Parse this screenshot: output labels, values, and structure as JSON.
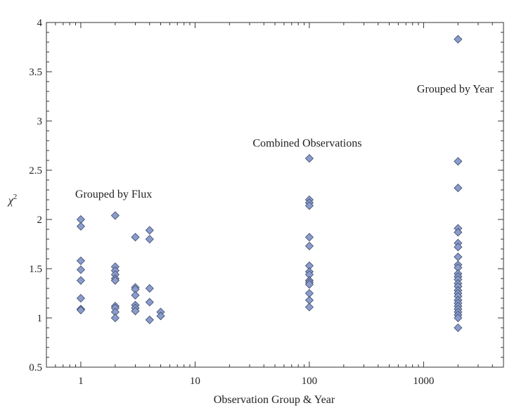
{
  "chart_data": {
    "type": "scatter",
    "xlabel": "Observation Group & Year",
    "ylabel_base": "χ",
    "ylabel_sup": "2",
    "x_scale": "log",
    "xlim": [
      0.5,
      5000
    ],
    "ylim": [
      0.5,
      4
    ],
    "x_ticks": [
      1,
      10,
      100,
      1000
    ],
    "x_tick_labels": [
      "1",
      "10",
      "100",
      "1000"
    ],
    "y_ticks": [
      0.5,
      1,
      1.5,
      2,
      2.5,
      3,
      3.5,
      4
    ],
    "y_tick_labels": [
      "0.5",
      "1",
      "1.5",
      "2",
      "2.5",
      "3",
      "3.5",
      "4"
    ],
    "grid": false,
    "marker": "diamond",
    "marker_color": "#8a9ccc",
    "marker_edge": "#3b4868",
    "annotations": [
      {
        "text": "Grouped by Flux",
        "x": 1,
        "y": 2.22
      },
      {
        "text": "Combined Observations",
        "x": 100,
        "y": 2.74
      },
      {
        "text": "Grouped by Year",
        "x": 2000,
        "y": 3.29
      }
    ],
    "points": [
      {
        "x": 1,
        "y": 2.0
      },
      {
        "x": 1,
        "y": 1.93
      },
      {
        "x": 1,
        "y": 1.58
      },
      {
        "x": 1,
        "y": 1.49
      },
      {
        "x": 1,
        "y": 1.38
      },
      {
        "x": 1,
        "y": 1.2
      },
      {
        "x": 1,
        "y": 1.09
      },
      {
        "x": 1,
        "y": 1.08
      },
      {
        "x": 2,
        "y": 2.04
      },
      {
        "x": 2,
        "y": 1.52
      },
      {
        "x": 2,
        "y": 1.48
      },
      {
        "x": 2,
        "y": 1.44
      },
      {
        "x": 2,
        "y": 1.4
      },
      {
        "x": 2,
        "y": 1.38
      },
      {
        "x": 2,
        "y": 1.12
      },
      {
        "x": 2,
        "y": 1.1
      },
      {
        "x": 2,
        "y": 1.06
      },
      {
        "x": 2,
        "y": 1.0
      },
      {
        "x": 3,
        "y": 1.82
      },
      {
        "x": 3,
        "y": 1.31
      },
      {
        "x": 3,
        "y": 1.29
      },
      {
        "x": 3,
        "y": 1.23
      },
      {
        "x": 3,
        "y": 1.13
      },
      {
        "x": 3,
        "y": 1.1
      },
      {
        "x": 3,
        "y": 1.07
      },
      {
        "x": 4,
        "y": 1.89
      },
      {
        "x": 4,
        "y": 1.8
      },
      {
        "x": 4,
        "y": 1.3
      },
      {
        "x": 4,
        "y": 1.16
      },
      {
        "x": 4,
        "y": 0.98
      },
      {
        "x": 5,
        "y": 1.06
      },
      {
        "x": 5,
        "y": 1.02
      },
      {
        "x": 100,
        "y": 2.62
      },
      {
        "x": 100,
        "y": 2.2
      },
      {
        "x": 100,
        "y": 2.17
      },
      {
        "x": 100,
        "y": 2.14
      },
      {
        "x": 100,
        "y": 1.82
      },
      {
        "x": 100,
        "y": 1.73
      },
      {
        "x": 100,
        "y": 1.53
      },
      {
        "x": 100,
        "y": 1.47
      },
      {
        "x": 100,
        "y": 1.44
      },
      {
        "x": 100,
        "y": 1.38
      },
      {
        "x": 100,
        "y": 1.36
      },
      {
        "x": 100,
        "y": 1.34
      },
      {
        "x": 100,
        "y": 1.25
      },
      {
        "x": 100,
        "y": 1.18
      },
      {
        "x": 100,
        "y": 1.11
      },
      {
        "x": 2000,
        "y": 3.83
      },
      {
        "x": 2000,
        "y": 2.59
      },
      {
        "x": 2000,
        "y": 2.32
      },
      {
        "x": 2000,
        "y": 1.91
      },
      {
        "x": 2000,
        "y": 1.87
      },
      {
        "x": 2000,
        "y": 1.76
      },
      {
        "x": 2000,
        "y": 1.72
      },
      {
        "x": 2000,
        "y": 1.62
      },
      {
        "x": 2000,
        "y": 1.54
      },
      {
        "x": 2000,
        "y": 1.51
      },
      {
        "x": 2000,
        "y": 1.45
      },
      {
        "x": 2000,
        "y": 1.42
      },
      {
        "x": 2000,
        "y": 1.39
      },
      {
        "x": 2000,
        "y": 1.35
      },
      {
        "x": 2000,
        "y": 1.32
      },
      {
        "x": 2000,
        "y": 1.28
      },
      {
        "x": 2000,
        "y": 1.25
      },
      {
        "x": 2000,
        "y": 1.22
      },
      {
        "x": 2000,
        "y": 1.18
      },
      {
        "x": 2000,
        "y": 1.15
      },
      {
        "x": 2000,
        "y": 1.12
      },
      {
        "x": 2000,
        "y": 1.09
      },
      {
        "x": 2000,
        "y": 1.06
      },
      {
        "x": 2000,
        "y": 1.03
      },
      {
        "x": 2000,
        "y": 1.0
      },
      {
        "x": 2000,
        "y": 0.9
      }
    ]
  }
}
